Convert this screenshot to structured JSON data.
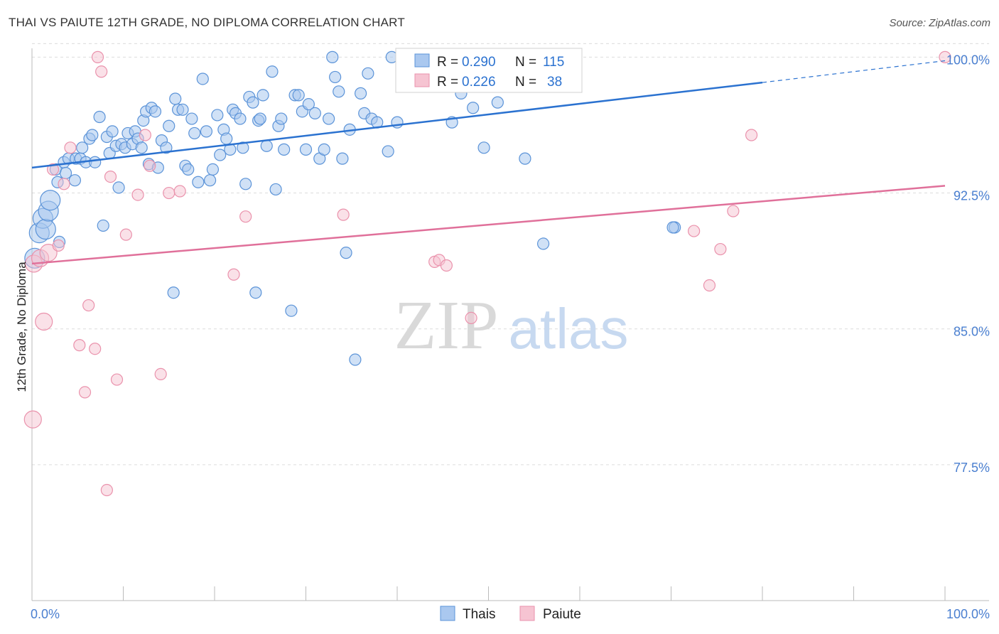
{
  "title": "THAI VS PAIUTE 12TH GRADE, NO DIPLOMA CORRELATION CHART",
  "source": "Source: ZipAtlas.com",
  "watermark": {
    "zip": "ZIP",
    "atlas": "atlas"
  },
  "colors": {
    "thais_fill": "#aac8ef",
    "thais_stroke": "#5b93d8",
    "thais_line": "#2b72d0",
    "paiute_fill": "#f6c4d2",
    "paiute_stroke": "#ea92ac",
    "paiute_line": "#e0709a",
    "tick_text": "#4a7fd0",
    "grid": "#dcdcdc"
  },
  "stats_legend": {
    "rows": [
      {
        "r_label": "R = ",
        "r_value": "0.290",
        "n_label": "N = ",
        "n_value": "115"
      },
      {
        "r_label": "R = ",
        "r_value": "0.226",
        "n_label": "N = ",
        "n_value": "38"
      }
    ]
  },
  "bottom_legend": [
    "Thais",
    "Paiute"
  ],
  "chart_data": {
    "type": "scatter",
    "title": "THAI VS PAIUTE 12TH GRADE, NO DIPLOMA CORRELATION CHART",
    "xlabel": "",
    "ylabel": "12th Grade, No Diploma",
    "xlim": [
      0,
      100
    ],
    "ylim": [
      70.0,
      100.8
    ],
    "x_tick_labels": [
      "0.0%",
      "100.0%"
    ],
    "y_ticks": [
      77.5,
      85.0,
      92.5,
      100.0
    ],
    "y_tick_labels": [
      "77.5%",
      "85.0%",
      "92.5%",
      "100.0%"
    ],
    "grid": true,
    "legend": "top-center",
    "series": [
      {
        "name": "Thais",
        "R": 0.29,
        "N": 115,
        "trend": {
          "x0": 0,
          "y0": 93.9,
          "x1": 80,
          "y1": 98.6,
          "dashed_to_x": 100,
          "dashed_to_y": 99.8
        },
        "points": [
          [
            0.3,
            88.9
          ],
          [
            0.8,
            90.3
          ],
          [
            1.2,
            91.1
          ],
          [
            1.5,
            90.5
          ],
          [
            1.8,
            91.5
          ],
          [
            2.0,
            92.1
          ],
          [
            2.6,
            93.8
          ],
          [
            2.8,
            93.1
          ],
          [
            3.0,
            89.8
          ],
          [
            3.5,
            94.2
          ],
          [
            3.7,
            93.6
          ],
          [
            4.0,
            94.4
          ],
          [
            4.8,
            94.4
          ],
          [
            4.7,
            93.2
          ],
          [
            5.3,
            94.4
          ],
          [
            5.5,
            95.0
          ],
          [
            5.9,
            94.2
          ],
          [
            6.3,
            95.5
          ],
          [
            6.6,
            95.7
          ],
          [
            6.9,
            94.2
          ],
          [
            7.4,
            96.7
          ],
          [
            7.8,
            90.7
          ],
          [
            8.2,
            95.6
          ],
          [
            8.5,
            94.7
          ],
          [
            8.8,
            95.9
          ],
          [
            9.2,
            95.1
          ],
          [
            9.5,
            92.8
          ],
          [
            9.8,
            95.2
          ],
          [
            10.2,
            95.0
          ],
          [
            10.5,
            95.8
          ],
          [
            11.0,
            95.2
          ],
          [
            11.3,
            95.9
          ],
          [
            11.6,
            95.5
          ],
          [
            12.0,
            95.0
          ],
          [
            12.2,
            96.5
          ],
          [
            12.5,
            97.0
          ],
          [
            12.8,
            94.1
          ],
          [
            13.1,
            97.2
          ],
          [
            13.5,
            97.0
          ],
          [
            13.8,
            93.9
          ],
          [
            14.2,
            95.4
          ],
          [
            14.7,
            95.0
          ],
          [
            15.0,
            96.2
          ],
          [
            15.5,
            87.0
          ],
          [
            15.7,
            97.7
          ],
          [
            16.0,
            97.1
          ],
          [
            16.5,
            97.1
          ],
          [
            16.8,
            94.0
          ],
          [
            17.1,
            93.8
          ],
          [
            17.5,
            96.6
          ],
          [
            17.8,
            95.8
          ],
          [
            18.2,
            93.1
          ],
          [
            18.7,
            98.8
          ],
          [
            19.1,
            95.9
          ],
          [
            19.5,
            93.2
          ],
          [
            19.8,
            93.8
          ],
          [
            20.3,
            96.8
          ],
          [
            20.6,
            94.6
          ],
          [
            21.0,
            96.0
          ],
          [
            21.3,
            95.5
          ],
          [
            21.7,
            94.9
          ],
          [
            22.0,
            97.1
          ],
          [
            22.3,
            96.9
          ],
          [
            22.8,
            96.6
          ],
          [
            23.1,
            95.0
          ],
          [
            23.4,
            93.0
          ],
          [
            23.8,
            97.8
          ],
          [
            24.2,
            97.5
          ],
          [
            24.5,
            87.0
          ],
          [
            24.8,
            96.5
          ],
          [
            25.0,
            96.6
          ],
          [
            25.3,
            97.9
          ],
          [
            25.7,
            95.1
          ],
          [
            26.3,
            99.2
          ],
          [
            26.7,
            92.7
          ],
          [
            27.0,
            96.2
          ],
          [
            27.3,
            96.6
          ],
          [
            27.6,
            94.9
          ],
          [
            28.4,
            86.0
          ],
          [
            28.8,
            97.9
          ],
          [
            29.2,
            97.9
          ],
          [
            29.6,
            97.0
          ],
          [
            30.0,
            94.9
          ],
          [
            30.3,
            97.4
          ],
          [
            31.0,
            96.9
          ],
          [
            31.5,
            94.4
          ],
          [
            32.0,
            94.9
          ],
          [
            32.5,
            96.6
          ],
          [
            32.9,
            100.0
          ],
          [
            33.2,
            98.9
          ],
          [
            33.6,
            98.1
          ],
          [
            34.0,
            94.4
          ],
          [
            34.4,
            89.2
          ],
          [
            34.8,
            96.0
          ],
          [
            35.4,
            83.3
          ],
          [
            36.0,
            98.0
          ],
          [
            36.4,
            96.9
          ],
          [
            36.8,
            99.1
          ],
          [
            37.2,
            96.6
          ],
          [
            37.8,
            96.4
          ],
          [
            39.0,
            94.8
          ],
          [
            39.4,
            100.0
          ],
          [
            40.0,
            96.4
          ],
          [
            41.2,
            100.0
          ],
          [
            44.0,
            99.2
          ],
          [
            44.5,
            98.7
          ],
          [
            46.0,
            96.4
          ],
          [
            47.0,
            98.0
          ],
          [
            48.3,
            97.2
          ],
          [
            49.5,
            95.0
          ],
          [
            51.0,
            97.5
          ],
          [
            56.0,
            89.7
          ],
          [
            54.0,
            94.4
          ],
          [
            70.4,
            90.6
          ],
          [
            70.2,
            90.6
          ]
        ]
      },
      {
        "name": "Paiute",
        "R": 0.226,
        "N": 38,
        "trend": {
          "x0": 0,
          "y0": 88.6,
          "x1": 100,
          "y1": 92.9
        },
        "points": [
          [
            0.2,
            88.6
          ],
          [
            0.9,
            88.9
          ],
          [
            1.3,
            85.4
          ],
          [
            1.8,
            89.2
          ],
          [
            2.3,
            93.8
          ],
          [
            2.9,
            89.6
          ],
          [
            3.5,
            93.0
          ],
          [
            4.2,
            95.0
          ],
          [
            5.2,
            84.1
          ],
          [
            5.8,
            81.5
          ],
          [
            6.2,
            86.3
          ],
          [
            6.9,
            83.9
          ],
          [
            7.2,
            100.0
          ],
          [
            7.6,
            99.2
          ],
          [
            8.2,
            76.1
          ],
          [
            8.6,
            93.4
          ],
          [
            9.3,
            82.2
          ],
          [
            10.3,
            90.2
          ],
          [
            11.6,
            92.4
          ],
          [
            12.4,
            95.7
          ],
          [
            12.9,
            94.0
          ],
          [
            14.1,
            82.5
          ],
          [
            15.0,
            92.5
          ],
          [
            16.2,
            92.6
          ],
          [
            22.1,
            88.0
          ],
          [
            23.4,
            91.2
          ],
          [
            34.1,
            91.3
          ],
          [
            44.1,
            88.7
          ],
          [
            44.6,
            88.8
          ],
          [
            45.4,
            88.5
          ],
          [
            48.1,
            85.6
          ],
          [
            72.5,
            90.4
          ],
          [
            74.2,
            87.4
          ],
          [
            75.4,
            89.4
          ],
          [
            76.8,
            91.5
          ],
          [
            78.8,
            95.7
          ],
          [
            100.0,
            100.0
          ],
          [
            0.1,
            80.0
          ]
        ]
      }
    ]
  }
}
